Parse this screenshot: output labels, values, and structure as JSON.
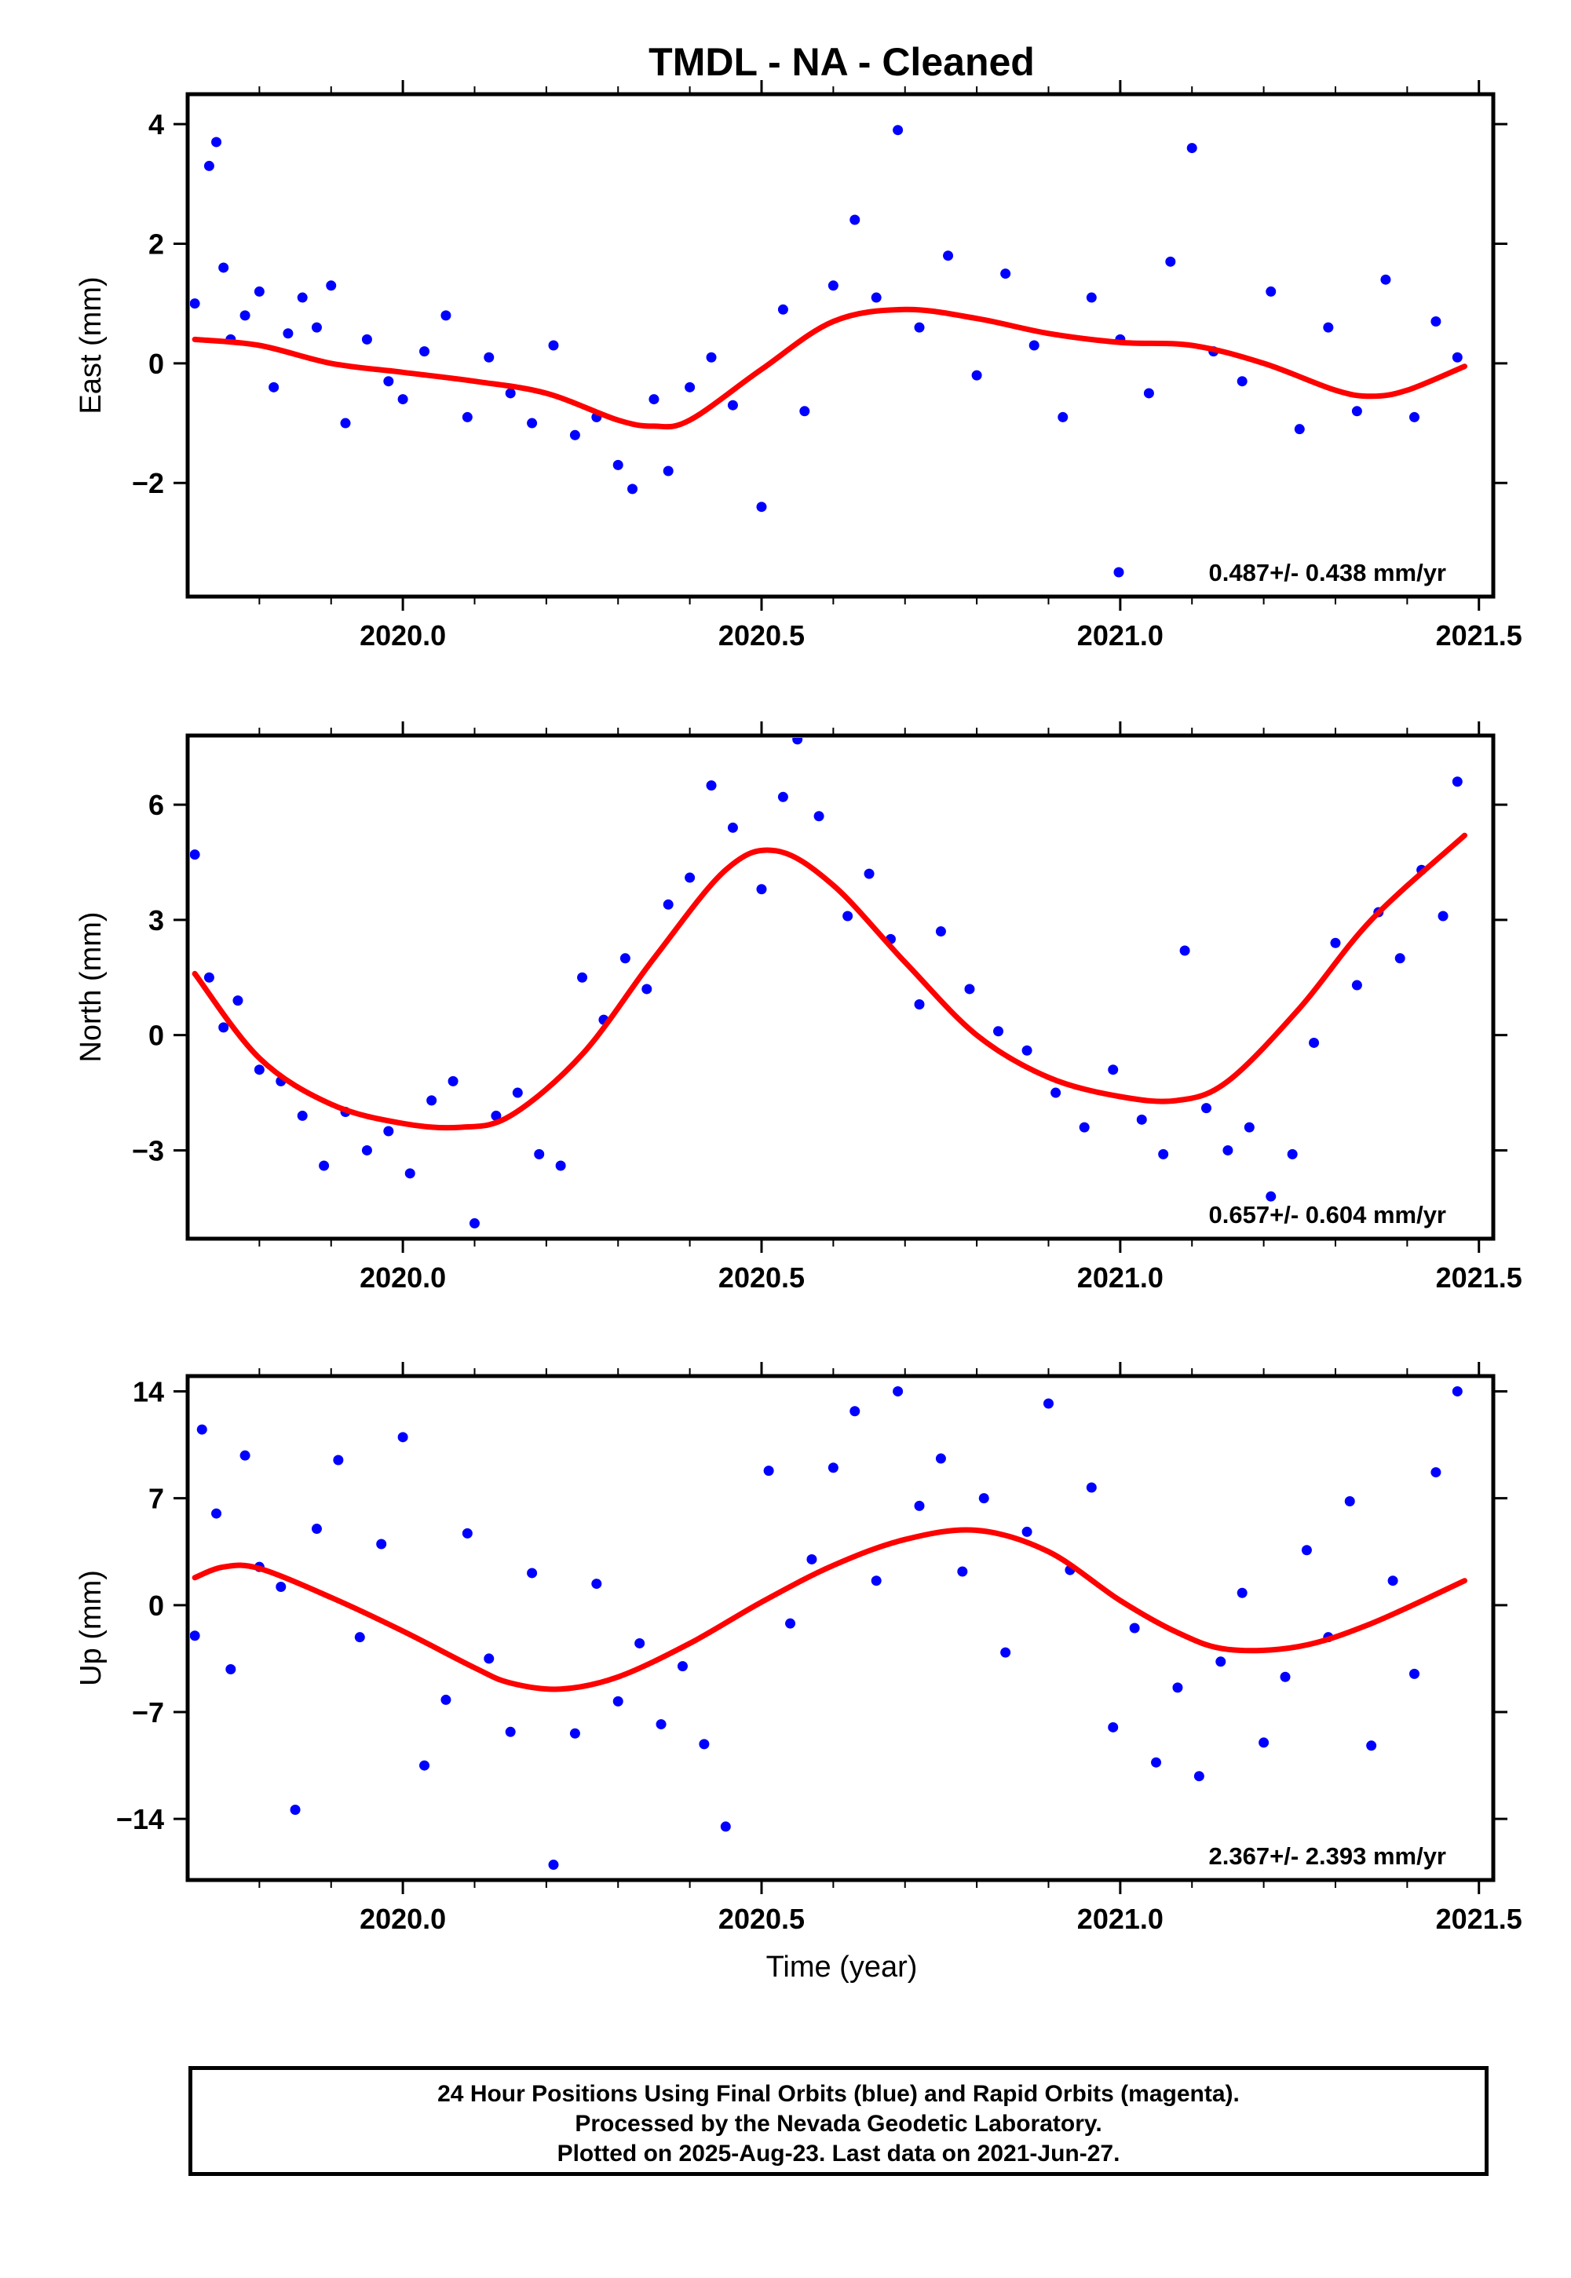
{
  "title": "TMDL  - NA - Cleaned",
  "xlabel": "Time (year)",
  "colors": {
    "points": "#0000ff",
    "fit": "#ff0000",
    "frame": "#000000"
  },
  "caption": {
    "line1": "24 Hour Positions Using Final Orbits (blue) and Rapid Orbits (magenta).",
    "line2": "Processed by the Nevada Geodetic Laboratory.",
    "line3": "Plotted on 2025-Aug-23. Last data on 2021-Jun-27."
  },
  "chart_data": [
    {
      "type": "scatter",
      "ylabel": "East (mm)",
      "xlim": [
        2019.7,
        2021.52
      ],
      "ylim": [
        -3.9,
        4.5
      ],
      "xticks": [
        "2020.0",
        "2020.5",
        "2021.0",
        "2021.5"
      ],
      "yticks": [
        "4",
        "2",
        "0",
        "−2"
      ],
      "ytick_values": [
        4,
        2,
        0,
        -2
      ],
      "rate": "0.487+/- 0.438 mm/yr",
      "series": [
        {
          "kind": "points",
          "x": [
            2019.71,
            2019.73,
            2019.74,
            2019.75,
            2019.76,
            2019.78,
            2019.8,
            2019.82,
            2019.84,
            2019.86,
            2019.88,
            2019.9,
            2019.92,
            2019.95,
            2019.98,
            2020.0,
            2020.03,
            2020.06,
            2020.09,
            2020.12,
            2020.15,
            2020.18,
            2020.21,
            2020.24,
            2020.27,
            2020.3,
            2020.32,
            2020.35,
            2020.37,
            2020.4,
            2020.43,
            2020.46,
            2020.5,
            2020.53,
            2020.56,
            2020.6,
            2020.63,
            2020.66,
            2020.69,
            2020.72,
            2020.76,
            2020.8,
            2020.84,
            2020.88,
            2020.92,
            2020.96,
            2021.0,
            2021.04,
            2021.07,
            2021.1,
            2021.13,
            2021.17,
            2021.21,
            2021.25,
            2021.29,
            2021.33,
            2021.37,
            2021.41,
            2021.44,
            2021.47
          ],
          "y": [
            1.0,
            3.3,
            3.7,
            1.6,
            0.4,
            0.8,
            1.2,
            -0.4,
            0.5,
            1.1,
            0.6,
            1.3,
            -1.0,
            0.4,
            -0.3,
            -0.6,
            0.2,
            0.8,
            -0.9,
            0.1,
            -0.5,
            -1.0,
            0.3,
            -1.2,
            -0.9,
            -1.7,
            -2.1,
            -0.6,
            -1.8,
            -0.4,
            0.1,
            -0.7,
            -2.4,
            0.9,
            -0.8,
            1.3,
            2.4,
            1.1,
            3.9,
            0.6,
            1.8,
            -0.2,
            1.5,
            0.3,
            -0.9,
            1.1,
            0.4,
            -0.5,
            1.7,
            3.6,
            0.2,
            -0.3,
            1.2,
            -1.1,
            0.6,
            -0.8,
            1.4,
            -0.9,
            0.7,
            0.1
          ]
        },
        {
          "kind": "fit",
          "x": [
            2019.71,
            2019.8,
            2019.9,
            2020.0,
            2020.1,
            2020.2,
            2020.3,
            2020.35,
            2020.4,
            2020.5,
            2020.6,
            2020.7,
            2020.8,
            2020.9,
            2021.0,
            2021.1,
            2021.2,
            2021.3,
            2021.35,
            2021.4,
            2021.48
          ],
          "y": [
            0.4,
            0.3,
            0.0,
            -0.15,
            -0.3,
            -0.5,
            -0.95,
            -1.05,
            -0.95,
            -0.1,
            0.7,
            0.9,
            0.75,
            0.5,
            0.35,
            0.3,
            0.0,
            -0.45,
            -0.55,
            -0.45,
            -0.05
          ]
        }
      ]
    },
    {
      "type": "scatter",
      "ylabel": "North (mm)",
      "xlim": [
        2019.7,
        2021.52
      ],
      "ylim": [
        -5.3,
        7.8
      ],
      "xticks": [
        "2020.0",
        "2020.5",
        "2021.0",
        "2021.5"
      ],
      "yticks": [
        "6",
        "3",
        "0",
        "−3"
      ],
      "ytick_values": [
        6,
        3,
        0,
        -3
      ],
      "rate": "0.657+/- 0.604 mm/yr",
      "series": [
        {
          "kind": "points",
          "x": [
            2019.71,
            2019.73,
            2019.75,
            2019.77,
            2019.8,
            2019.83,
            2019.86,
            2019.89,
            2019.92,
            2019.95,
            2019.98,
            2020.01,
            2020.04,
            2020.07,
            2020.1,
            2020.13,
            2020.16,
            2020.19,
            2020.22,
            2020.25,
            2020.28,
            2020.31,
            2020.34,
            2020.37,
            2020.4,
            2020.43,
            2020.46,
            2020.5,
            2020.53,
            2020.55,
            2020.58,
            2020.62,
            2020.65,
            2020.68,
            2020.72,
            2020.75,
            2020.79,
            2020.83,
            2020.87,
            2020.91,
            2020.95,
            2020.99,
            2021.03,
            2021.06,
            2021.09,
            2021.12,
            2021.15,
            2021.18,
            2021.21,
            2021.24,
            2021.27,
            2021.3,
            2021.33,
            2021.36,
            2021.39,
            2021.42,
            2021.45,
            2021.47
          ],
          "y": [
            4.7,
            1.5,
            0.2,
            0.9,
            -0.9,
            -1.2,
            -2.1,
            -3.4,
            -2.0,
            -3.0,
            -2.5,
            -3.6,
            -1.7,
            -1.2,
            -4.9,
            -2.1,
            -1.5,
            -3.1,
            -3.4,
            1.5,
            0.4,
            2.0,
            1.2,
            3.4,
            4.1,
            6.5,
            5.4,
            3.8,
            6.2,
            7.7,
            5.7,
            3.1,
            4.2,
            2.5,
            0.8,
            2.7,
            1.2,
            0.1,
            -0.4,
            -1.5,
            -2.4,
            -0.9,
            -2.2,
            -3.1,
            2.2,
            -1.9,
            -3.0,
            -2.4,
            -4.2,
            -3.1,
            -0.2,
            2.4,
            1.3,
            3.2,
            2.0,
            4.3,
            3.1,
            6.6
          ]
        },
        {
          "kind": "fit",
          "x": [
            2019.71,
            2019.8,
            2019.9,
            2020.0,
            2020.08,
            2020.15,
            2020.25,
            2020.35,
            2020.45,
            2020.52,
            2020.6,
            2020.7,
            2020.8,
            2020.9,
            2021.0,
            2021.08,
            2021.15,
            2021.25,
            2021.35,
            2021.48
          ],
          "y": [
            1.6,
            -0.6,
            -1.8,
            -2.3,
            -2.4,
            -2.1,
            -0.5,
            2.0,
            4.3,
            4.8,
            3.9,
            1.9,
            0.0,
            -1.1,
            -1.6,
            -1.7,
            -1.2,
            0.7,
            3.0,
            5.2
          ]
        }
      ]
    },
    {
      "type": "scatter",
      "ylabel": "Up (mm)",
      "xlim": [
        2019.7,
        2021.52
      ],
      "ylim": [
        -18,
        15
      ],
      "xticks": [
        "2020.0",
        "2020.5",
        "2021.0",
        "2021.5"
      ],
      "yticks": [
        "14",
        "7",
        "0",
        "−7",
        "−14"
      ],
      "ytick_values": [
        14,
        7,
        0,
        -7,
        -14
      ],
      "rate": "2.367+/- 2.393 mm/yr",
      "series": [
        {
          "kind": "points",
          "x": [
            2019.71,
            2019.72,
            2019.74,
            2019.76,
            2019.78,
            2019.8,
            2019.83,
            2019.85,
            2019.88,
            2019.91,
            2019.94,
            2019.97,
            2020.0,
            2020.03,
            2020.06,
            2020.09,
            2020.12,
            2020.15,
            2020.18,
            2020.21,
            2020.24,
            2020.27,
            2020.3,
            2020.33,
            2020.36,
            2020.39,
            2020.42,
            2020.45,
            2020.51,
            2020.54,
            2020.57,
            2020.6,
            2020.63,
            2020.66,
            2020.69,
            2020.72,
            2020.75,
            2020.78,
            2020.81,
            2020.84,
            2020.87,
            2020.9,
            2020.93,
            2020.96,
            2020.99,
            2021.02,
            2021.05,
            2021.08,
            2021.11,
            2021.14,
            2021.17,
            2021.2,
            2021.23,
            2021.26,
            2021.29,
            2021.32,
            2021.35,
            2021.38,
            2021.41,
            2021.44,
            2021.47
          ],
          "y": [
            -2.0,
            11.5,
            6.0,
            -4.2,
            9.8,
            2.5,
            1.2,
            -13.4,
            5.0,
            9.5,
            -2.1,
            4.0,
            11.0,
            -10.5,
            -6.2,
            4.7,
            -3.5,
            -8.3,
            2.1,
            -17.0,
            -8.4,
            1.4,
            -6.3,
            -2.5,
            -7.8,
            -4.0,
            -9.1,
            -14.5,
            8.8,
            -1.2,
            3.0,
            9.0,
            12.7,
            1.6,
            14.0,
            6.5,
            9.6,
            2.2,
            7.0,
            -3.1,
            4.8,
            13.2,
            2.3,
            7.7,
            -8.0,
            -1.5,
            -10.3,
            -5.4,
            -11.2,
            -3.7,
            0.8,
            -9.0,
            -4.7,
            3.6,
            -2.1,
            6.8,
            -9.2,
            1.6,
            -4.5,
            8.7,
            14.0
          ]
        },
        {
          "kind": "fit",
          "x": [
            2019.71,
            2019.75,
            2019.8,
            2019.9,
            2020.0,
            2020.1,
            2020.15,
            2020.22,
            2020.3,
            2020.4,
            2020.5,
            2020.6,
            2020.7,
            2020.8,
            2020.9,
            2021.0,
            2021.08,
            2021.15,
            2021.25,
            2021.35,
            2021.48
          ],
          "y": [
            1.8,
            2.5,
            2.4,
            0.5,
            -1.7,
            -4.1,
            -5.1,
            -5.5,
            -4.7,
            -2.5,
            0.2,
            2.6,
            4.3,
            4.9,
            3.5,
            0.3,
            -1.8,
            -2.9,
            -2.7,
            -1.2,
            1.6
          ]
        }
      ]
    }
  ]
}
